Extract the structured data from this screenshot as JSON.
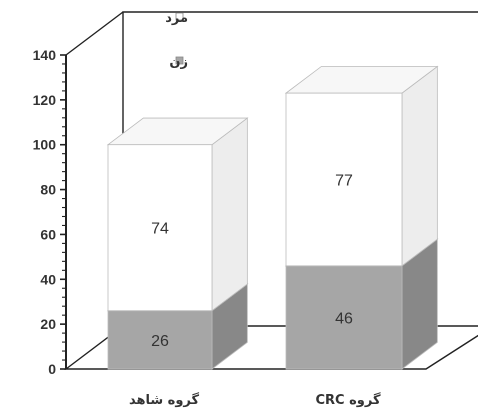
{
  "chart_data": {
    "type": "bar",
    "stacked": true,
    "three_d": true,
    "categories": [
      "گروه شاهد",
      "گروه CRC"
    ],
    "series": [
      {
        "name": "زن",
        "values": [
          26,
          46
        ],
        "color": "#a6a6a6"
      },
      {
        "name": "مرد",
        "values": [
          74,
          77
        ],
        "color": "#ffffff"
      }
    ],
    "ylim": [
      0,
      140
    ],
    "yticks": [
      0,
      20,
      40,
      60,
      80,
      100,
      120,
      140
    ],
    "ytick_labels": [
      "0",
      "20",
      "40",
      "60",
      "80",
      "100",
      "120",
      "140"
    ],
    "legend_position": "top",
    "grid": false,
    "xlabel": "",
    "ylabel": "",
    "title": ""
  }
}
